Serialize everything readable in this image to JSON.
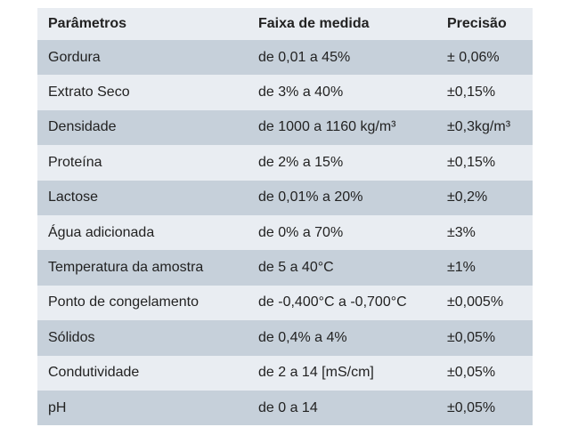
{
  "table": {
    "headers": [
      "Parâmetros",
      "Faixa de medida",
      "Precisão"
    ],
    "rows": [
      [
        "Gordura",
        "de 0,01 a 45%",
        "± 0,06%"
      ],
      [
        "Extrato Seco",
        "de 3% a 40%",
        "±0,15%"
      ],
      [
        "Densidade",
        "de 1000 a 1160 kg/m³",
        "±0,3kg/m³"
      ],
      [
        "Proteína",
        "de 2% a 15%",
        "±0,15%"
      ],
      [
        "Lactose",
        "de 0,01% a 20%",
        "±0,2%"
      ],
      [
        "Água adicionada",
        "de 0% a 70%",
        "±3%"
      ],
      [
        "Temperatura da amostra",
        "de 5 a 40°C",
        "±1%"
      ],
      [
        "Ponto de congelamento",
        "de -0,400°C a -0,700°C",
        "±0,005%"
      ],
      [
        "Sólidos",
        "de 0,4% a 4%",
        "±0,05%"
      ],
      [
        "Condutividade",
        "de 2 a 14 [mS/cm]",
        "±0,05%"
      ],
      [
        "pH",
        "de 0 a 14",
        "±0,05%"
      ]
    ]
  },
  "colors": {
    "header_bg": "#e9edf2",
    "row_dark": "#c6d0da",
    "row_light": "#e9edf2",
    "text": "#222222"
  }
}
